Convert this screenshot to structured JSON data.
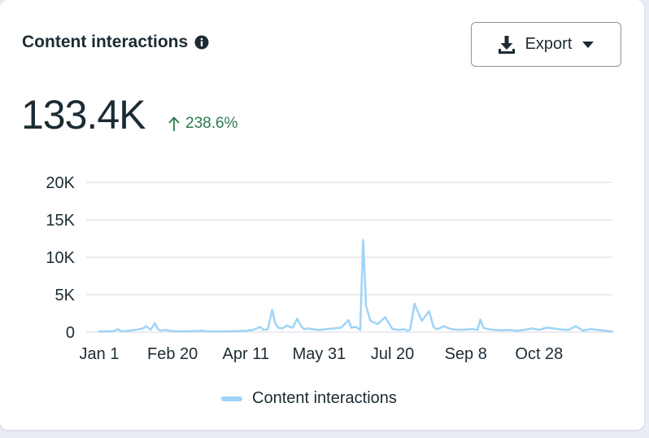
{
  "card": {
    "title": "Content interactions",
    "info_icon": "info-icon",
    "export_label": "Export",
    "export_icon": "download-icon",
    "dropdown_icon": "caret-down-icon",
    "total_value": "133.4K",
    "change_value": "238.6%",
    "change_icon": "arrow-up-icon"
  },
  "colors": {
    "series": "#9fd4f7",
    "change_positive": "#2b7a4b",
    "text": "#1c2b33",
    "gridline": "#dde1e6"
  },
  "chart_data": {
    "type": "line",
    "title": "Content interactions",
    "xlabel": "",
    "ylabel": "",
    "ylim": [
      0,
      20000
    ],
    "yticks": [
      0,
      5000,
      10000,
      15000,
      20000
    ],
    "ytick_labels": [
      "0",
      "5K",
      "10K",
      "15K",
      "20K"
    ],
    "xlim": [
      0,
      350
    ],
    "xticks": [
      0,
      50,
      100,
      150,
      200,
      250,
      300
    ],
    "xtick_labels": [
      "Jan 1",
      "Feb 20",
      "Apr 11",
      "May 31",
      "Jul 20",
      "Sep 8",
      "Oct 28"
    ],
    "grid": true,
    "legend": "bottom-center",
    "series": [
      {
        "name": "Content interactions",
        "x": [
          0,
          5,
          10,
          13,
          15,
          20,
          25,
          30,
          32,
          35,
          38,
          40,
          42,
          45,
          50,
          55,
          60,
          65,
          70,
          75,
          80,
          85,
          90,
          95,
          100,
          105,
          110,
          112,
          115,
          118,
          120,
          122,
          125,
          128,
          130,
          132,
          135,
          138,
          140,
          142,
          145,
          150,
          155,
          160,
          165,
          170,
          172,
          175,
          178,
          180,
          182,
          185,
          190,
          195,
          200,
          205,
          208,
          210,
          212,
          215,
          220,
          225,
          228,
          230,
          232,
          235,
          240,
          245,
          250,
          255,
          258,
          260,
          262,
          265,
          270,
          275,
          280,
          285,
          290,
          295,
          300,
          305,
          310,
          315,
          320,
          325,
          330,
          335,
          340,
          345,
          350
        ],
        "y": [
          100,
          100,
          150,
          400,
          100,
          200,
          300,
          500,
          800,
          300,
          1200,
          400,
          200,
          300,
          150,
          100,
          120,
          150,
          200,
          100,
          80,
          100,
          120,
          150,
          200,
          300,
          700,
          300,
          400,
          3000,
          1200,
          600,
          500,
          900,
          700,
          600,
          1800,
          700,
          400,
          500,
          400,
          300,
          400,
          500,
          600,
          1600,
          600,
          700,
          300,
          12300,
          3500,
          1500,
          1100,
          2000,
          400,
          300,
          400,
          200,
          300,
          3800,
          1500,
          2800,
          700,
          400,
          500,
          800,
          400,
          300,
          350,
          400,
          300,
          1700,
          600,
          400,
          300,
          250,
          300,
          200,
          300,
          500,
          300,
          600,
          500,
          350,
          300,
          800,
          200,
          400,
          300,
          200,
          100
        ]
      }
    ]
  },
  "legend": {
    "items": [
      {
        "label": "Content interactions"
      }
    ]
  }
}
